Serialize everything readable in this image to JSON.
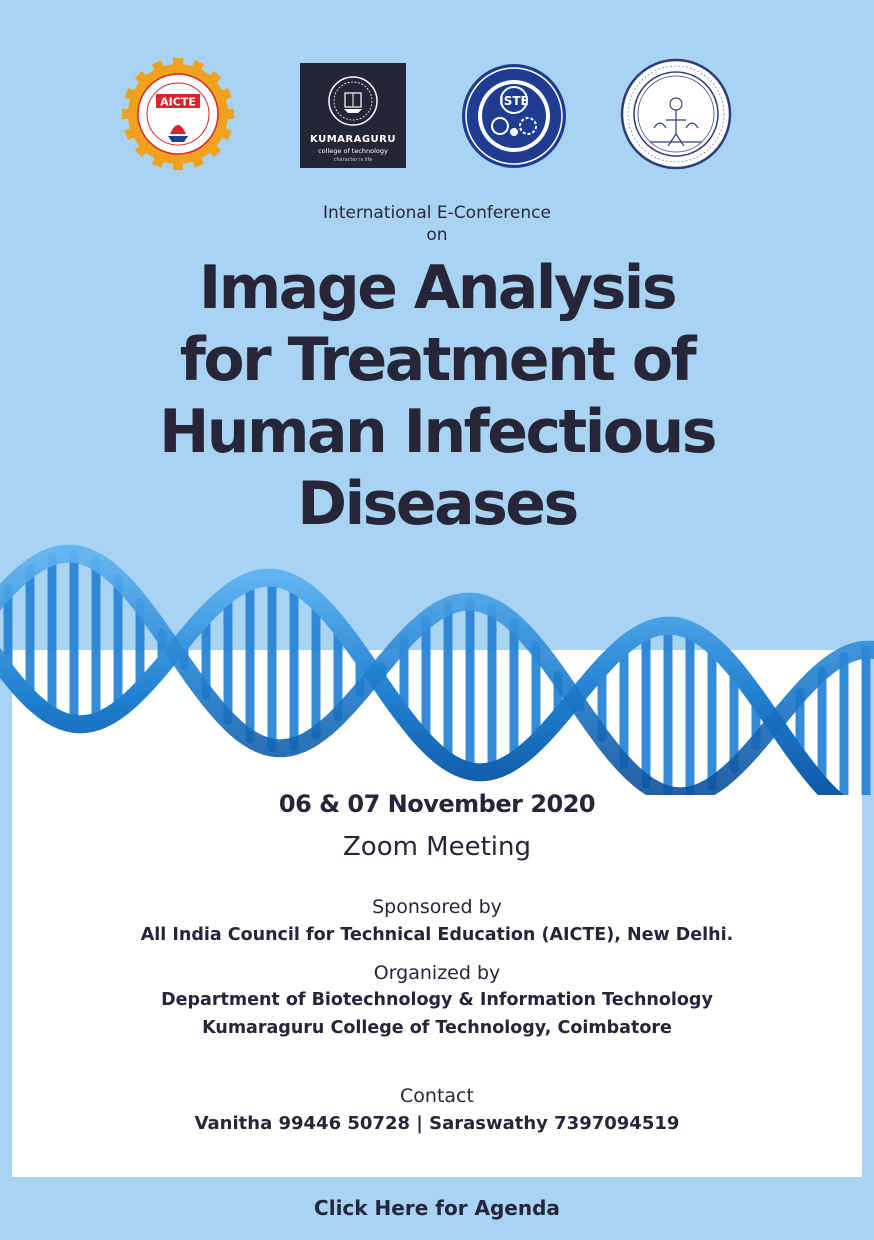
{
  "logos": {
    "aicte_text": "AICTE",
    "aicte_ring": "All India Council for Technical Education",
    "aicte_hindi": "योग: कर्मसु कौशलम्",
    "kct_name": "KUMARAGURU",
    "kct_sub": "college of technology",
    "kct_tag": "character is life",
    "iste_text": "ISTE",
    "iste_ring": "INDIAN SOCIETY FOR TECHNICAL EDUCATION",
    "ie_ring_top": "THE INSTITUTION OF ENGINEERS (INDIA)",
    "ie_ring_bottom": "INCORPORATED BY ROYAL CHARTER 1935"
  },
  "intro": {
    "line1": "International E-Conference",
    "line2": "on"
  },
  "title": {
    "line1": "Image Analysis",
    "line2": "for Treatment of",
    "line3": "Human Infectious",
    "line4": "Diseases"
  },
  "event": {
    "dates": "06  & 07  November 2020",
    "venue": "Zoom Meeting"
  },
  "sponsor": {
    "label": "Sponsored by",
    "org": "All India Council for Technical Education (AICTE), New Delhi."
  },
  "organizer": {
    "label": "Organized by",
    "dept": "Department of Biotechnology  & Information Technology",
    "college": "Kumaraguru College of Technology, Coimbatore"
  },
  "contact": {
    "label": "Contact",
    "people": "Vanitha 99446 50728 |  Saraswathy 7397094519"
  },
  "agenda_link": "Click Here for Agenda",
  "colors": {
    "background": "#a9d3f2",
    "card": "#ffffff",
    "text": "#26263a",
    "dna": "#1f7fd0",
    "aicte_orange": "#f0a11e",
    "aicte_red": "#d9242a",
    "iste_blue": "#1f3c93",
    "ie_navy": "#2f3e78"
  }
}
